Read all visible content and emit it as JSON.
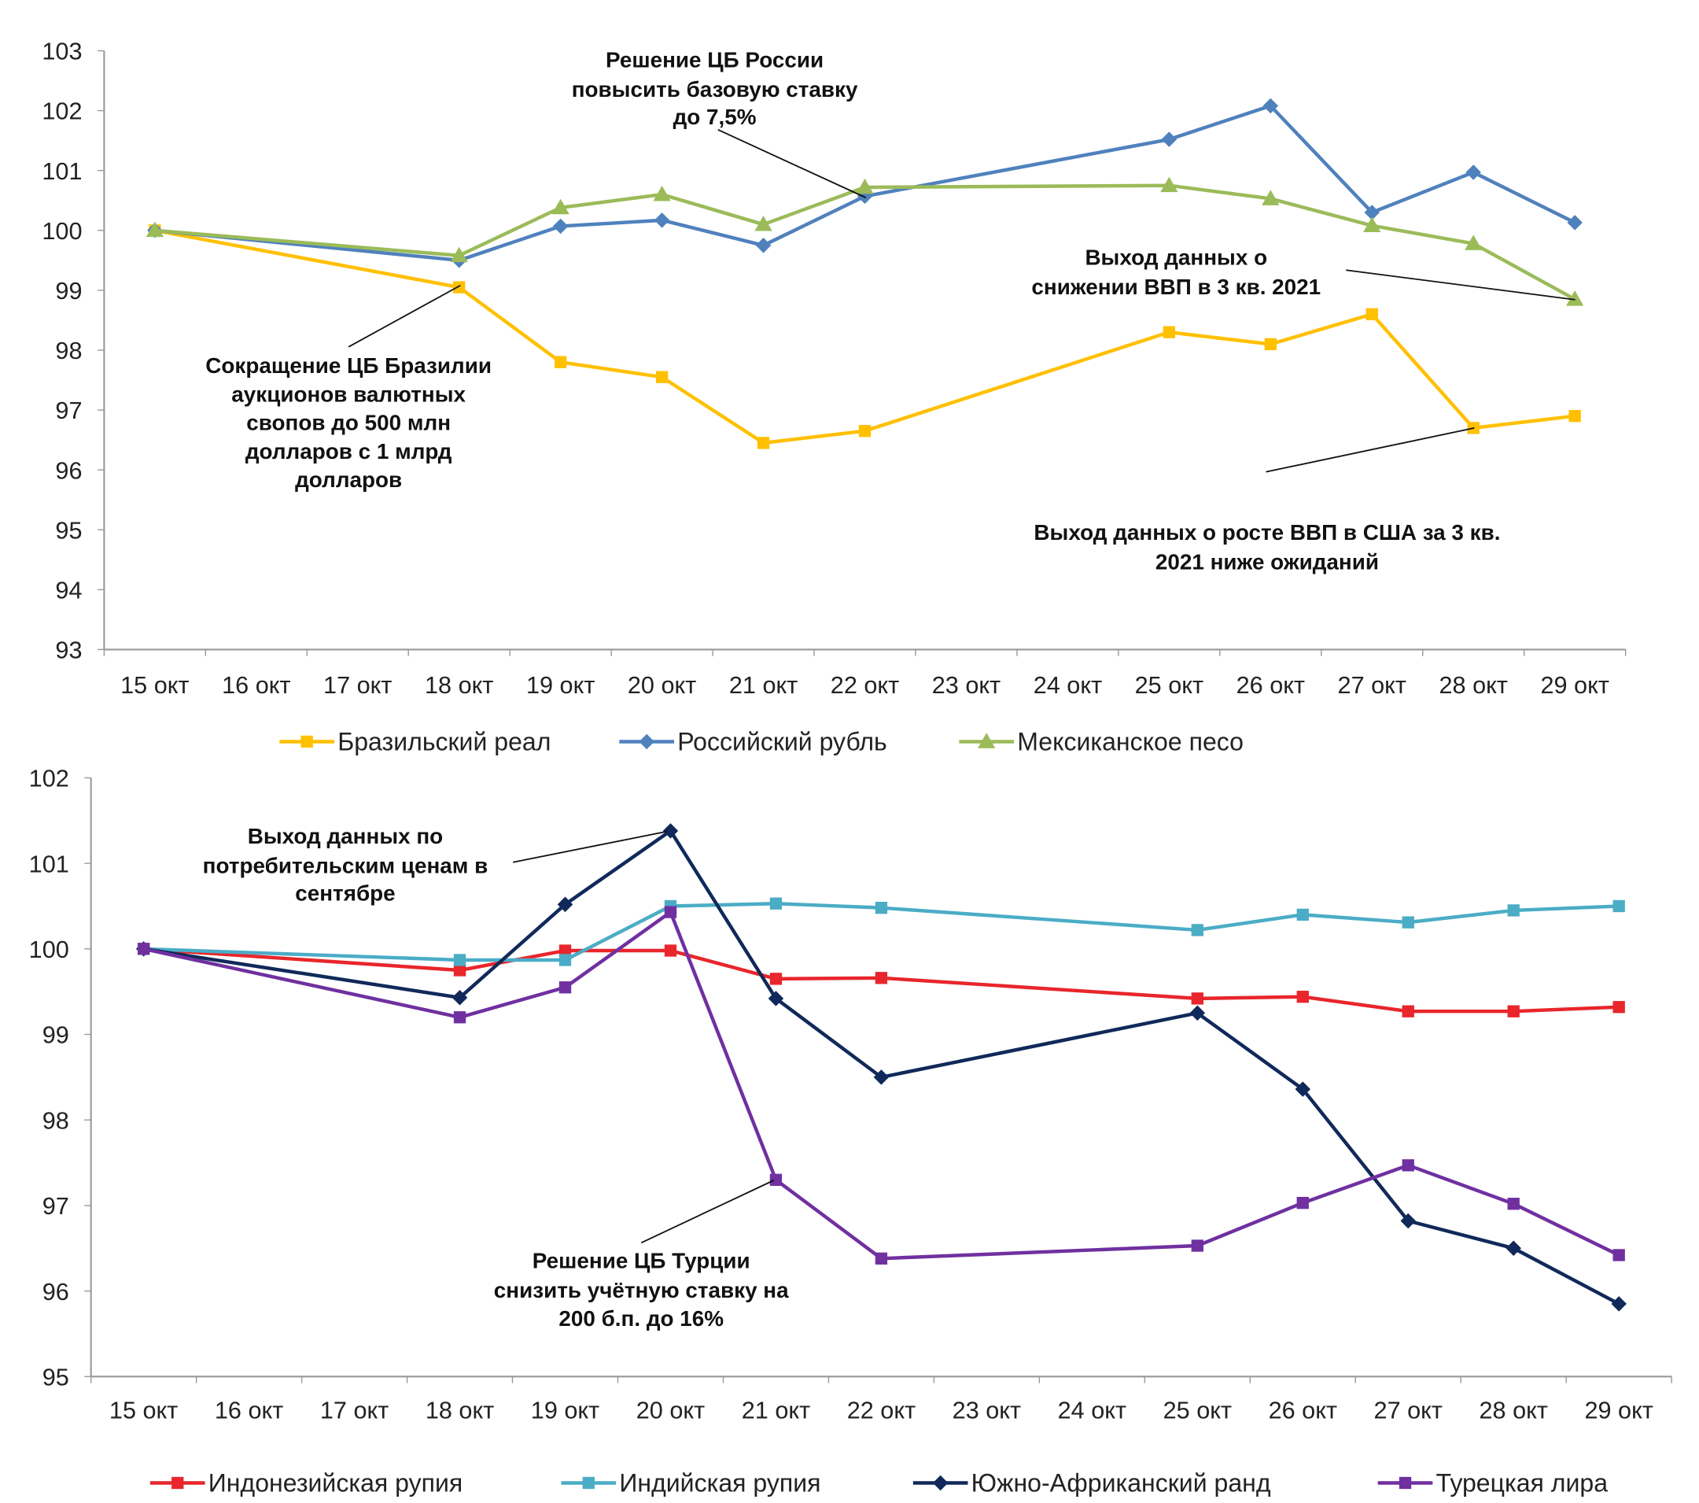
{
  "chart_data": [
    {
      "type": "line",
      "categories": [
        "15 окт",
        "16 окт",
        "17 окт",
        "18 окт",
        "19 окт",
        "20 окт",
        "21 окт",
        "22 окт",
        "23 окт",
        "24 окт",
        "25 окт",
        "26 окт",
        "27 окт",
        "28 окт",
        "29 окт"
      ],
      "ylim": [
        93,
        103
      ],
      "yticks": [
        93,
        94,
        95,
        96,
        97,
        98,
        99,
        100,
        101,
        102,
        103
      ],
      "grid": false,
      "legend": "bottom",
      "series": [
        {
          "name": "Бразильский реал",
          "color": "#FFC000",
          "marker": "square",
          "values": [
            100,
            null,
            null,
            99.05,
            97.8,
            97.55,
            96.45,
            96.65,
            null,
            null,
            98.3,
            98.1,
            98.6,
            96.7,
            96.9
          ]
        },
        {
          "name": "Российский рубль",
          "color": "#4F81BD",
          "marker": "diamond",
          "values": [
            100,
            null,
            null,
            99.5,
            100.07,
            100.17,
            99.75,
            100.57,
            null,
            null,
            101.52,
            102.08,
            100.3,
            100.97,
            100.13
          ]
        },
        {
          "name": "Мексиканское песо",
          "color": "#9BBB59",
          "marker": "triangle",
          "values": [
            100,
            null,
            null,
            99.58,
            100.38,
            100.6,
            100.1,
            100.72,
            null,
            null,
            100.75,
            100.53,
            100.08,
            99.78,
            98.85
          ]
        }
      ],
      "annotations": [
        {
          "lines": [
            "Решение ЦБ России",
            "повысить базовую ставку",
            "до 7,5%"
          ]
        },
        {
          "lines": [
            "Сокращение ЦБ Бразилии",
            "аукционов валютных",
            "свопов до 500 млн",
            "долларов с 1 млрд",
            "долларов"
          ]
        },
        {
          "lines": [
            "Выход данных о",
            "снижении ВВП в 3 кв. 2021"
          ]
        },
        {
          "lines": [
            "Выход данных о росте ВВП в США за 3 кв.",
            "2021 ниже ожиданий"
          ]
        }
      ]
    },
    {
      "type": "line",
      "categories": [
        "15 окт",
        "16 окт",
        "17 окт",
        "18 окт",
        "19 окт",
        "20 окт",
        "21 окт",
        "22 окт",
        "23 окт",
        "24 окт",
        "25 окт",
        "26 окт",
        "27 окт",
        "28 окт",
        "29 окт"
      ],
      "ylim": [
        95,
        102
      ],
      "yticks": [
        95,
        96,
        97,
        98,
        99,
        100,
        101,
        102
      ],
      "grid": false,
      "legend": "bottom",
      "series": [
        {
          "name": "Индонезийская рупия",
          "color": "#E8262B",
          "marker": "square",
          "values": [
            100,
            null,
            null,
            99.75,
            99.98,
            99.98,
            99.65,
            99.66,
            null,
            null,
            99.42,
            99.44,
            99.27,
            99.27,
            99.32
          ]
        },
        {
          "name": "Индийская рупия",
          "color": "#4BACC6",
          "marker": "square",
          "values": [
            100,
            null,
            null,
            99.87,
            99.87,
            100.5,
            100.53,
            100.48,
            null,
            null,
            100.22,
            100.4,
            100.31,
            100.45,
            100.5
          ]
        },
        {
          "name": "Южно-Африканский ранд",
          "color": "#10295A",
          "marker": "diamond",
          "values": [
            100,
            null,
            null,
            99.43,
            100.52,
            101.38,
            99.42,
            98.5,
            null,
            null,
            99.25,
            98.36,
            96.82,
            96.5,
            95.85
          ]
        },
        {
          "name": "Турецкая лира",
          "color": "#7030A0",
          "marker": "square",
          "values": [
            100,
            null,
            null,
            99.2,
            99.55,
            100.43,
            97.3,
            96.38,
            null,
            null,
            96.53,
            97.03,
            97.47,
            97.02,
            96.42
          ]
        }
      ],
      "annotations": [
        {
          "lines": [
            "Выход данных по",
            "потребительским ценам в",
            "сентябре"
          ]
        },
        {
          "lines": [
            "Решение ЦБ Турции",
            "снизить учётную ставку на",
            "200 б.п. до 16%"
          ]
        }
      ]
    }
  ]
}
